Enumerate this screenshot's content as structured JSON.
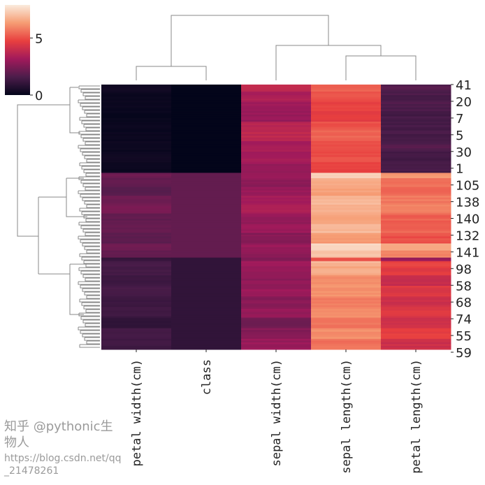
{
  "chart_data": {
    "type": "heatmap",
    "subtype": "clustermap",
    "columns": [
      "petal width(cm)",
      "class",
      "sepal width(cm)",
      "sepal length(cm)",
      "petal length(cm)"
    ],
    "row_tick_labels": [
      "41",
      "20",
      "7",
      "5",
      "30",
      "1",
      "105",
      "138",
      "140",
      "132",
      "141",
      "98",
      "58",
      "68",
      "74",
      "55",
      "59"
    ],
    "colorbar": {
      "ticks": [
        0,
        5
      ],
      "range": [
        0,
        7.9
      ],
      "colormap": "rocket"
    },
    "row_segments": [
      {
        "n": 4,
        "values": [
          0.3,
          0,
          3.9,
          5.4,
          1.7
        ]
      },
      {
        "n": 6,
        "values": [
          0.2,
          0,
          3.4,
          5.0,
          1.5
        ]
      },
      {
        "n": 5,
        "values": [
          0.2,
          0,
          3.1,
          4.8,
          1.6
        ]
      },
      {
        "n": 6,
        "values": [
          0.1,
          0,
          3.0,
          4.6,
          1.4
        ]
      },
      {
        "n": 5,
        "values": [
          0.2,
          0,
          3.6,
          5.1,
          1.4
        ]
      },
      {
        "n": 6,
        "values": [
          0.2,
          0,
          3.8,
          5.4,
          1.5
        ]
      },
      {
        "n": 6,
        "values": [
          0.2,
          0,
          3.3,
          5.1,
          1.7
        ]
      },
      {
        "n": 6,
        "values": [
          0.3,
          0,
          3.2,
          5.0,
          1.3
        ]
      },
      {
        "n": 6,
        "values": [
          0.2,
          0,
          3.0,
          4.7,
          1.4
        ]
      },
      {
        "n": 3,
        "values": [
          2.2,
          2,
          3.0,
          7.5,
          6.3
        ]
      },
      {
        "n": 5,
        "values": [
          2.0,
          2,
          2.8,
          6.7,
          5.6
        ]
      },
      {
        "n": 5,
        "values": [
          1.8,
          2,
          3.0,
          6.4,
          5.5
        ]
      },
      {
        "n": 5,
        "values": [
          2.2,
          2,
          3.2,
          6.9,
          5.7
        ]
      },
      {
        "n": 5,
        "values": [
          2.4,
          2,
          3.4,
          6.8,
          5.9
        ]
      },
      {
        "n": 6,
        "values": [
          2.0,
          2,
          2.9,
          6.5,
          5.3
        ]
      },
      {
        "n": 5,
        "values": [
          2.1,
          2,
          3.1,
          6.9,
          5.4
        ]
      },
      {
        "n": 6,
        "values": [
          1.9,
          2,
          2.7,
          6.3,
          5.0
        ]
      },
      {
        "n": 4,
        "values": [
          2.3,
          2,
          3.0,
          7.6,
          6.6
        ]
      },
      {
        "n": 4,
        "values": [
          2.0,
          2,
          2.8,
          7.1,
          5.9
        ]
      },
      {
        "n": 2,
        "values": [
          1.1,
          1,
          2.5,
          5.1,
          3.0
        ]
      },
      {
        "n": 3,
        "values": [
          1.5,
          1,
          3.2,
          6.9,
          4.9
        ]
      },
      {
        "n": 5,
        "values": [
          1.4,
          1,
          2.9,
          6.6,
          4.6
        ]
      },
      {
        "n": 6,
        "values": [
          1.3,
          1,
          2.8,
          6.1,
          4.0
        ]
      },
      {
        "n": 6,
        "values": [
          1.5,
          1,
          3.0,
          6.2,
          4.5
        ]
      },
      {
        "n": 6,
        "values": [
          1.2,
          1,
          2.7,
          5.8,
          4.1
        ]
      },
      {
        "n": 6,
        "values": [
          1.3,
          1,
          2.9,
          6.0,
          4.5
        ]
      },
      {
        "n": 6,
        "values": [
          1.0,
          1,
          2.3,
          5.7,
          4.2
        ]
      },
      {
        "n": 6,
        "values": [
          1.4,
          1,
          2.6,
          6.1,
          4.7
        ]
      },
      {
        "n": 6,
        "values": [
          1.3,
          1,
          3.0,
          5.6,
          4.1
        ]
      }
    ]
  },
  "watermark": {
    "line1": "知乎 @pythonic生物人",
    "line2": "https://blog.csdn.net/qq_21478261"
  }
}
